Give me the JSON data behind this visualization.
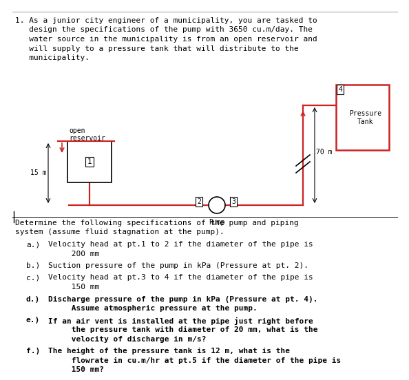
{
  "bg_color": "#ffffff",
  "pipe_color": "#cc2222",
  "black": "#000000",
  "font_size": 8.0,
  "title_lines": [
    "1. As a junior city engineer of a municipality, you are tasked to",
    "   design the specifications of the pump with 3650 cu.m/day. The",
    "   water source in the municipality is from an open reservoir and",
    "   will supply to a pressure tank that will distribute to the",
    "   municipality."
  ],
  "det_lines": [
    "Determine the following specifications of the pump and piping",
    "system (assume fluid stagnation at the pump)."
  ],
  "q_items": [
    {
      "label": "a.)",
      "bold": false,
      "lines": [
        "Velocity head at pt.1 to 2 if the diameter of the pipe is",
        "     200 mm"
      ]
    },
    {
      "label": "b.)",
      "bold": false,
      "lines": [
        "Suction pressure of the pump in kPa (Pressure at pt. 2)."
      ]
    },
    {
      "label": "c.)",
      "bold": false,
      "lines": [
        "Velocity head at pt.3 to 4 if the diameter of the pipe is",
        "     150 mm"
      ]
    },
    {
      "label": "d.)",
      "bold": true,
      "lines": [
        "Discharge pressure of the pump in kPa (Pressure at pt. 4).",
        "     Assume atmospheric pressure at the pump."
      ]
    },
    {
      "label": "e.)",
      "bold": true,
      "lines": [
        "If an air vent is installed at the pipe just right before",
        "     the pressure tank with diameter of 20 mm, what is the",
        "     velocity of discharge in m/s?"
      ]
    },
    {
      "label": "f.)",
      "bold": true,
      "lines": [
        "The height of the pressure tank is 12 m, what is the",
        "     flowrate in cu.m/hr at pt.5 if the diameter of the pipe is",
        "     150 mm?"
      ]
    }
  ]
}
